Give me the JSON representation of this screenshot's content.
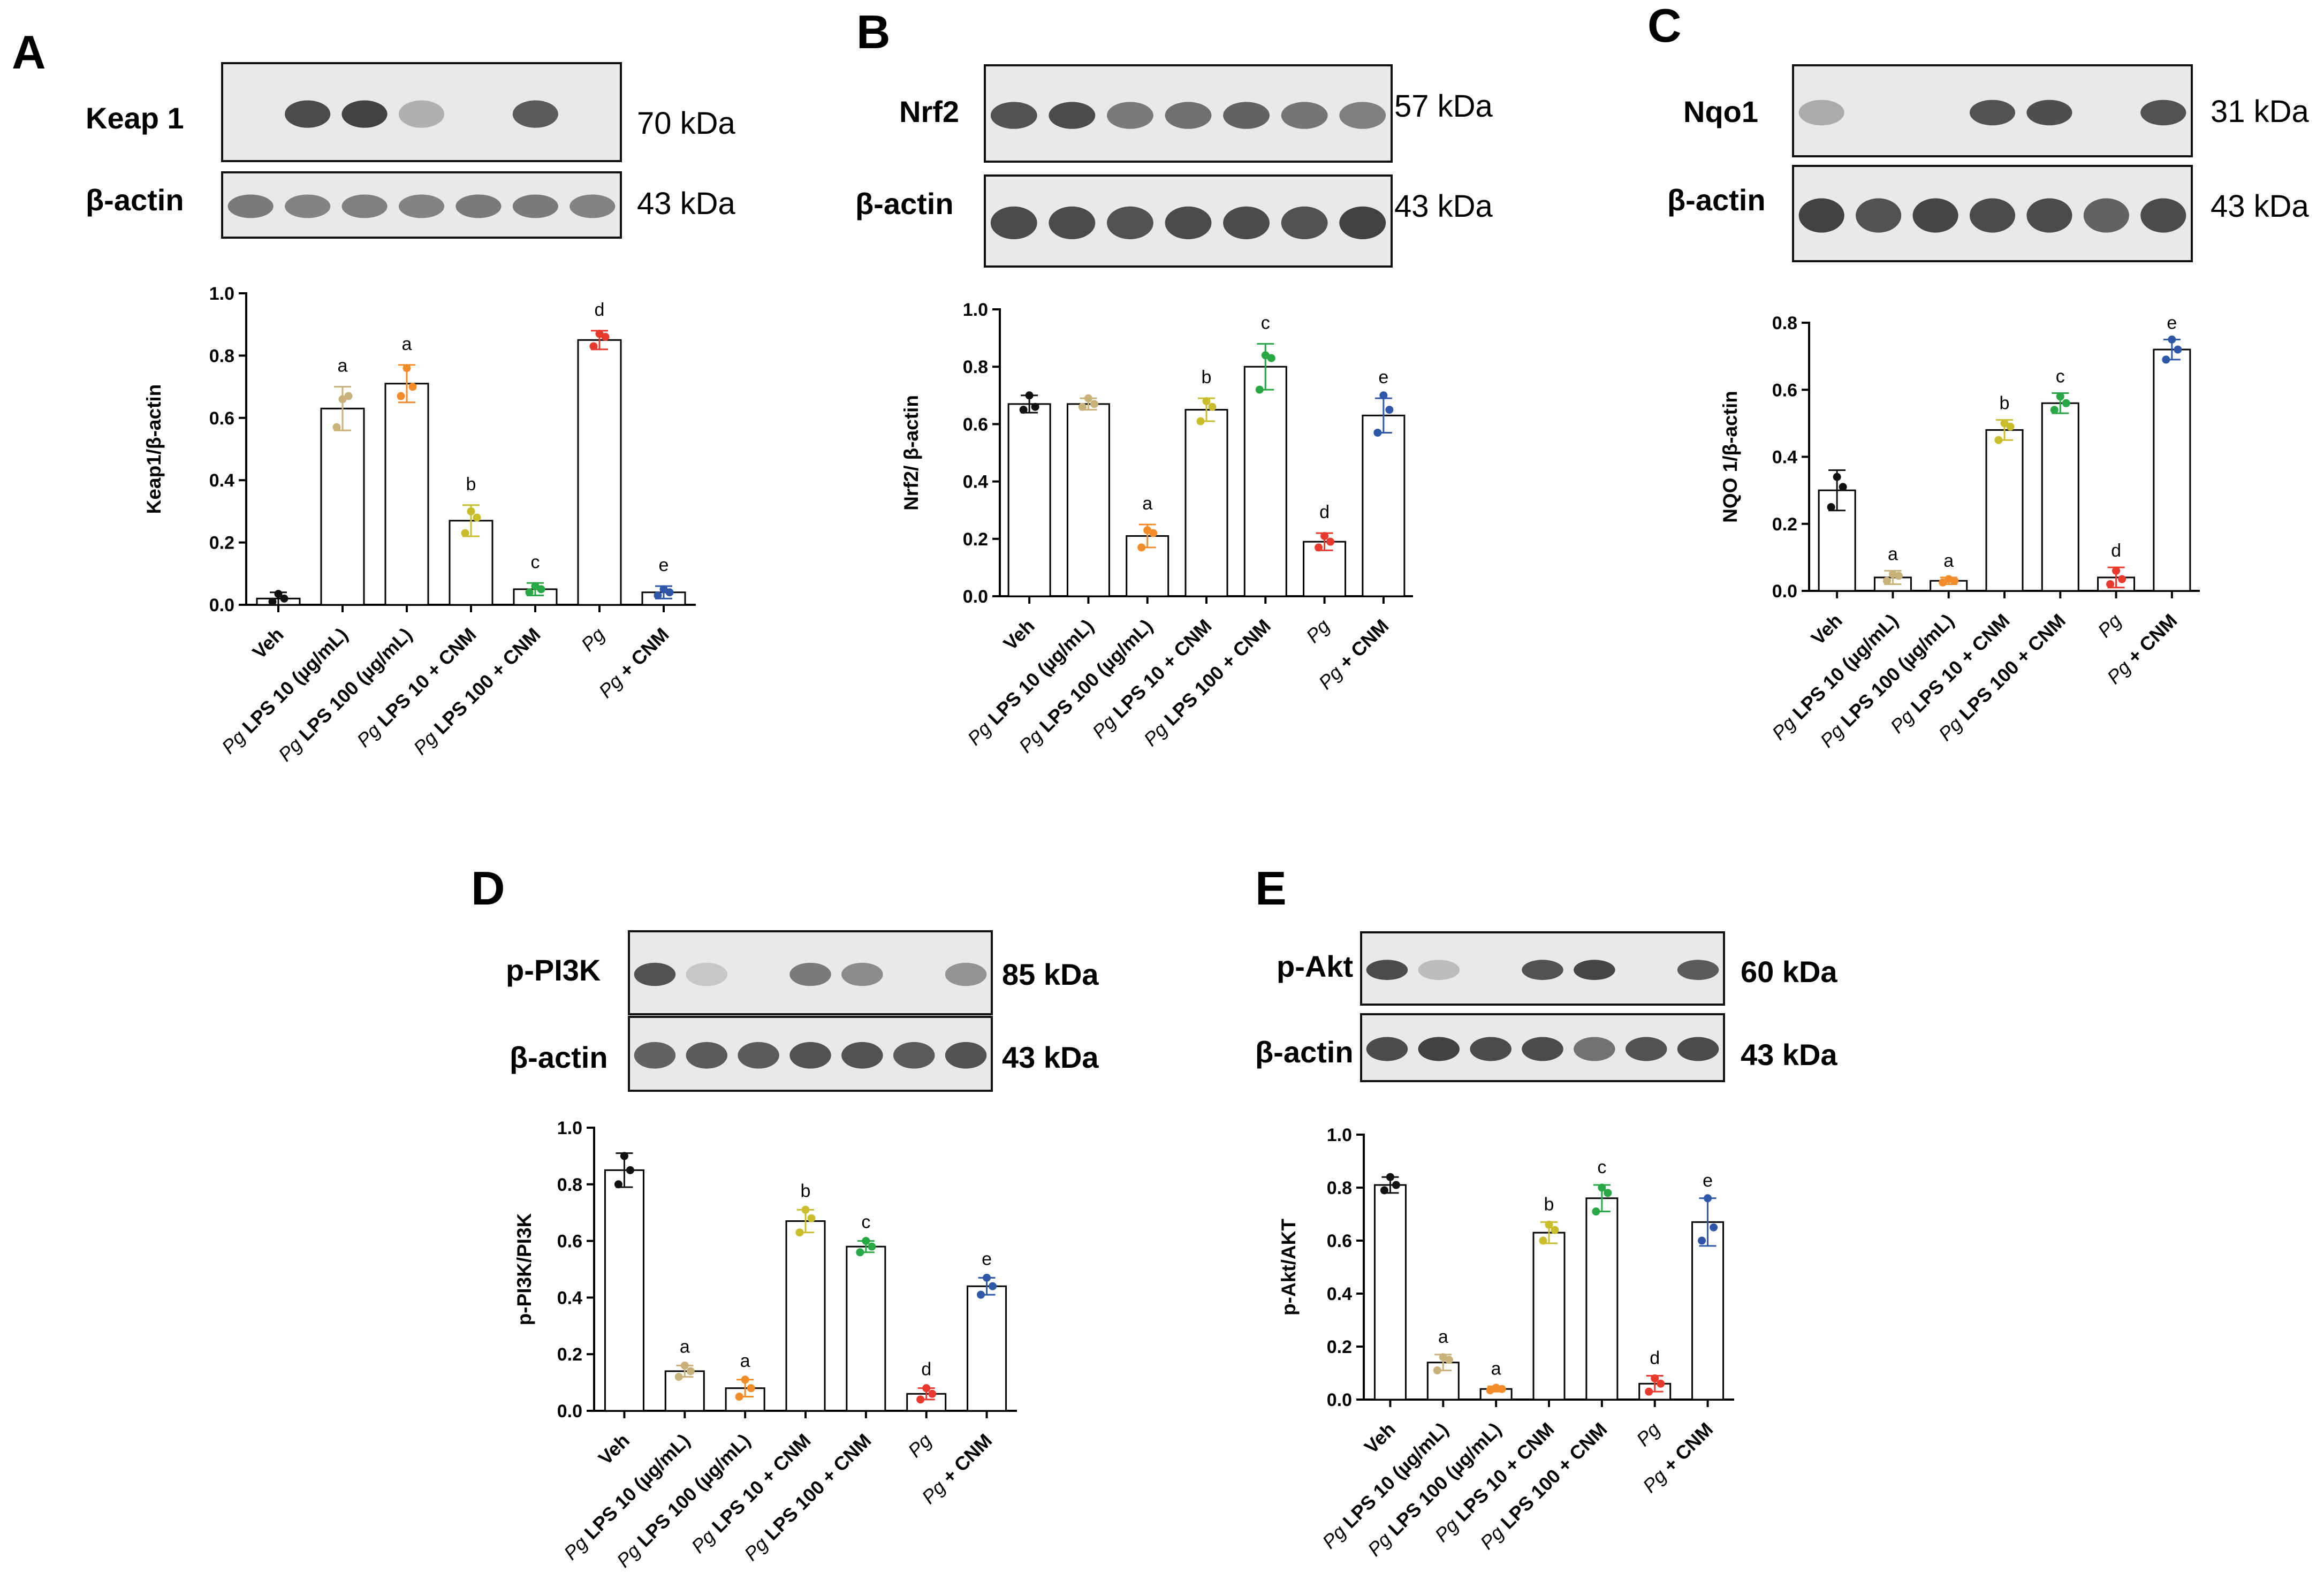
{
  "series_colors": [
    "#111111",
    "#c8b27a",
    "#f28c28",
    "#c9bd2c",
    "#27a844",
    "#e8392d",
    "#2e57a8"
  ],
  "panels": [
    {
      "id": "A",
      "label": "A",
      "blots": [
        {
          "name": "Keap 1",
          "kda": "70 kDa",
          "bands": [
            0,
            0.85,
            0.9,
            0.22,
            0,
            0.75,
            0
          ]
        },
        {
          "name": "β-actin",
          "kda": "43 kDa",
          "bands": [
            0.55,
            0.5,
            0.52,
            0.5,
            0.55,
            0.55,
            0.5
          ]
        }
      ],
      "chart_data": {
        "type": "bar",
        "ylabel": "Keap1/β-actin",
        "ylim": [
          0,
          1.0
        ],
        "yticks": [
          "0.0",
          "0.2",
          "0.4",
          "0.6",
          "0.8",
          "1.0"
        ],
        "categories": [
          {
            "italic": "",
            "text": "Veh"
          },
          {
            "italic": "Pg",
            "text": " LPS 10 (µg/mL)"
          },
          {
            "italic": "Pg",
            "text": " LPS 100 (µg/mL)"
          },
          {
            "italic": "Pg",
            "text": " LPS 10 + CNM"
          },
          {
            "italic": "Pg",
            "text": " LPS 100 + CNM"
          },
          {
            "italic": "Pg",
            "text": ""
          },
          {
            "italic": "Pg",
            "text": " + CNM"
          }
        ],
        "values": [
          0.02,
          0.63,
          0.71,
          0.27,
          0.05,
          0.85,
          0.04
        ],
        "errors": [
          0.02,
          0.07,
          0.06,
          0.05,
          0.02,
          0.03,
          0.02
        ],
        "points": [
          [
            0.01,
            0.035,
            0.02
          ],
          [
            0.57,
            0.66,
            0.67
          ],
          [
            0.67,
            0.76,
            0.7
          ],
          [
            0.23,
            0.3,
            0.28
          ],
          [
            0.04,
            0.06,
            0.05
          ],
          [
            0.83,
            0.87,
            0.86
          ],
          [
            0.03,
            0.05,
            0.04
          ]
        ],
        "labels": [
          "",
          "a",
          "a",
          "b",
          "c",
          "d",
          "e"
        ]
      }
    },
    {
      "id": "B",
      "label": "B",
      "blots": [
        {
          "name": "Nrf2",
          "kda": "57 kDa",
          "bands": [
            0.8,
            0.85,
            0.55,
            0.62,
            0.7,
            0.58,
            0.52
          ]
        },
        {
          "name": "β-actin",
          "kda": "43 kDa",
          "bands": [
            0.85,
            0.85,
            0.8,
            0.85,
            0.85,
            0.8,
            0.9
          ]
        }
      ],
      "chart_data": {
        "type": "bar",
        "ylabel": "Nrf2/ β-actin",
        "ylim": [
          0,
          1.0
        ],
        "yticks": [
          "0.0",
          "0.2",
          "0.4",
          "0.6",
          "0.8",
          "1.0"
        ],
        "categories": [
          {
            "italic": "",
            "text": "Veh"
          },
          {
            "italic": "Pg",
            "text": " LPS 10 (µg/mL)"
          },
          {
            "italic": "Pg",
            "text": " LPS 100 (µg/mL)"
          },
          {
            "italic": "Pg",
            "text": " LPS 10 + CNM"
          },
          {
            "italic": "Pg",
            "text": " LPS 100 + CNM"
          },
          {
            "italic": "Pg",
            "text": ""
          },
          {
            "italic": "Pg",
            "text": " + CNM"
          }
        ],
        "values": [
          0.67,
          0.67,
          0.21,
          0.65,
          0.8,
          0.19,
          0.63
        ],
        "errors": [
          0.03,
          0.02,
          0.04,
          0.04,
          0.08,
          0.03,
          0.06
        ],
        "points": [
          [
            0.65,
            0.7,
            0.66
          ],
          [
            0.66,
            0.69,
            0.67
          ],
          [
            0.17,
            0.23,
            0.22
          ],
          [
            0.61,
            0.68,
            0.66
          ],
          [
            0.72,
            0.84,
            0.83
          ],
          [
            0.17,
            0.21,
            0.19
          ],
          [
            0.57,
            0.7,
            0.65
          ]
        ],
        "labels": [
          "",
          "",
          "a",
          "b",
          "c",
          "d",
          "e"
        ]
      }
    },
    {
      "id": "C",
      "label": "C",
      "blots": [
        {
          "name": "Nqo1",
          "kda": "31 kDa",
          "bands": [
            0.25,
            0,
            0,
            0.8,
            0.82,
            0,
            0.8
          ]
        },
        {
          "name": "β-actin",
          "kda": "43 kDa",
          "bands": [
            0.9,
            0.8,
            0.88,
            0.85,
            0.85,
            0.7,
            0.85
          ]
        }
      ],
      "chart_data": {
        "type": "bar",
        "ylabel": "NQO 1/β-actin",
        "ylim": [
          0,
          0.8
        ],
        "yticks": [
          "0.0",
          "0.2",
          "0.4",
          "0.6",
          "0.8"
        ],
        "categories": [
          {
            "italic": "",
            "text": "Veh"
          },
          {
            "italic": "Pg",
            "text": " LPS 10 (µg/mL)"
          },
          {
            "italic": "Pg",
            "text": " LPS 100 (µg/mL)"
          },
          {
            "italic": "Pg",
            "text": " LPS 10 + CNM"
          },
          {
            "italic": "Pg",
            "text": " LPS 100 + CNM"
          },
          {
            "italic": "Pg",
            "text": ""
          },
          {
            "italic": "Pg",
            "text": " + CNM"
          }
        ],
        "values": [
          0.3,
          0.04,
          0.03,
          0.48,
          0.56,
          0.04,
          0.72
        ],
        "errors": [
          0.06,
          0.02,
          0.01,
          0.03,
          0.03,
          0.03,
          0.03
        ],
        "points": [
          [
            0.25,
            0.34,
            0.31
          ],
          [
            0.03,
            0.05,
            0.045
          ],
          [
            0.025,
            0.035,
            0.03
          ],
          [
            0.45,
            0.5,
            0.49
          ],
          [
            0.54,
            0.58,
            0.56
          ],
          [
            0.02,
            0.06,
            0.035
          ],
          [
            0.69,
            0.75,
            0.72
          ]
        ],
        "labels": [
          "",
          "a",
          "a",
          "b",
          "c",
          "d",
          "e"
        ]
      }
    },
    {
      "id": "D",
      "label": "D",
      "blots": [
        {
          "name": "p-PI3K",
          "kda": "85 kDa",
          "bands": [
            0.8,
            0.08,
            0,
            0.55,
            0.45,
            0,
            0.4
          ]
        },
        {
          "name": "β-actin",
          "kda": "43 kDa",
          "bands": [
            0.7,
            0.75,
            0.75,
            0.8,
            0.8,
            0.75,
            0.8
          ]
        }
      ],
      "chart_data": {
        "type": "bar",
        "ylabel": "p-PI3K/PI3K",
        "ylim": [
          0,
          1.0
        ],
        "yticks": [
          "0.0",
          "0.2",
          "0.4",
          "0.6",
          "0.8",
          "1.0"
        ],
        "categories": [
          {
            "italic": "",
            "text": "Veh"
          },
          {
            "italic": "Pg",
            "text": " LPS 10 (µg/mL)"
          },
          {
            "italic": "Pg",
            "text": " LPS 100 (µg/mL)"
          },
          {
            "italic": "Pg",
            "text": " LPS 10 + CNM"
          },
          {
            "italic": "Pg",
            "text": " LPS 100 + CNM"
          },
          {
            "italic": "Pg",
            "text": ""
          },
          {
            "italic": "Pg",
            "text": " + CNM"
          }
        ],
        "values": [
          0.85,
          0.14,
          0.08,
          0.67,
          0.58,
          0.06,
          0.44
        ],
        "errors": [
          0.06,
          0.02,
          0.03,
          0.04,
          0.02,
          0.02,
          0.03
        ],
        "points": [
          [
            0.8,
            0.9,
            0.85
          ],
          [
            0.12,
            0.16,
            0.14
          ],
          [
            0.05,
            0.11,
            0.08
          ],
          [
            0.63,
            0.71,
            0.68
          ],
          [
            0.56,
            0.6,
            0.58
          ],
          [
            0.04,
            0.08,
            0.06
          ],
          [
            0.41,
            0.47,
            0.44
          ]
        ],
        "labels": [
          "",
          "a",
          "a",
          "b",
          "c",
          "d",
          "e"
        ]
      }
    },
    {
      "id": "E",
      "label": "E",
      "blots": [
        {
          "name": "p-Akt",
          "kda": "60 kDa",
          "bands": [
            0.85,
            0.15,
            0,
            0.8,
            0.88,
            0,
            0.75
          ]
        },
        {
          "name": "β-actin",
          "kda": "43 kDa",
          "bands": [
            0.85,
            0.9,
            0.85,
            0.85,
            0.6,
            0.8,
            0.85
          ]
        }
      ],
      "chart_data": {
        "type": "bar",
        "ylabel": "p-Akt/AKT",
        "ylim": [
          0,
          1.0
        ],
        "yticks": [
          "0.0",
          "0.2",
          "0.4",
          "0.6",
          "0.8",
          "1.0"
        ],
        "categories": [
          {
            "italic": "",
            "text": "Veh"
          },
          {
            "italic": "Pg",
            "text": " LPS 10 (µg/mL)"
          },
          {
            "italic": "Pg",
            "text": " LPS 100 (µg/mL)"
          },
          {
            "italic": "Pg",
            "text": " LPS 10 + CNM"
          },
          {
            "italic": "Pg",
            "text": " LPS 100 + CNM"
          },
          {
            "italic": "Pg",
            "text": ""
          },
          {
            "italic": "Pg",
            "text": " + CNM"
          }
        ],
        "values": [
          0.81,
          0.14,
          0.04,
          0.63,
          0.76,
          0.06,
          0.67
        ],
        "errors": [
          0.03,
          0.03,
          0.01,
          0.04,
          0.05,
          0.03,
          0.09
        ],
        "points": [
          [
            0.79,
            0.84,
            0.81
          ],
          [
            0.11,
            0.16,
            0.15
          ],
          [
            0.035,
            0.045,
            0.04
          ],
          [
            0.6,
            0.66,
            0.64
          ],
          [
            0.71,
            0.8,
            0.78
          ],
          [
            0.03,
            0.08,
            0.06
          ],
          [
            0.6,
            0.76,
            0.65
          ]
        ],
        "labels": [
          "",
          "a",
          "a",
          "b",
          "c",
          "d",
          "e"
        ]
      }
    }
  ]
}
